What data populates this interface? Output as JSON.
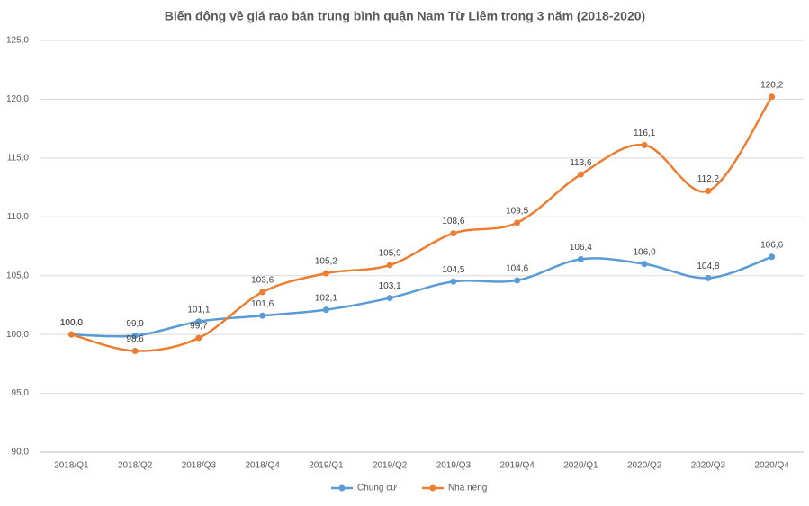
{
  "chart_data": {
    "type": "line",
    "title": "Biến động về giá rao bán trung bình quận Nam Từ Liêm trong 3 năm (2018-2020)",
    "categories": [
      "2018/Q1",
      "2018/Q2",
      "2018/Q3",
      "2018/Q4",
      "2019/Q1",
      "2019/Q2",
      "2019/Q3",
      "2019/Q4",
      "2020/Q1",
      "2020/Q2",
      "2020/Q3",
      "2020/Q4"
    ],
    "series": [
      {
        "name": "Chung cư",
        "color": "#5b9bd5",
        "values": [
          100.0,
          99.9,
          101.1,
          101.6,
          102.1,
          103.1,
          104.5,
          104.6,
          106.4,
          106.0,
          104.8,
          106.6
        ],
        "value_labels": [
          "100,0",
          "99,9",
          "101,1",
          "101,6",
          "102,1",
          "103,1",
          "104,5",
          "104,6",
          "106,4",
          "106,0",
          "104,8",
          "106,6"
        ]
      },
      {
        "name": "Nhà riêng",
        "color": "#ed7d31",
        "values": [
          100.0,
          98.6,
          99.7,
          103.6,
          105.2,
          105.9,
          108.6,
          109.5,
          113.6,
          116.1,
          112.2,
          120.2
        ],
        "value_labels": [
          "100,0",
          "98,6",
          "99,7",
          "103,6",
          "105,2",
          "105,9",
          "108,6",
          "109,5",
          "113,6",
          "116,1",
          "112,2",
          "120,2"
        ]
      }
    ],
    "ylim": [
      90,
      125
    ],
    "yticks": [
      {
        "value": 90,
        "label": "90,0"
      },
      {
        "value": 95,
        "label": "95,0"
      },
      {
        "value": 100,
        "label": "100,0"
      },
      {
        "value": 105,
        "label": "105,0"
      },
      {
        "value": 110,
        "label": "110,0"
      },
      {
        "value": 115,
        "label": "115,0"
      },
      {
        "value": 120,
        "label": "120,0"
      },
      {
        "value": 125,
        "label": "125,0"
      }
    ],
    "grid": true,
    "legend": "bottom"
  }
}
